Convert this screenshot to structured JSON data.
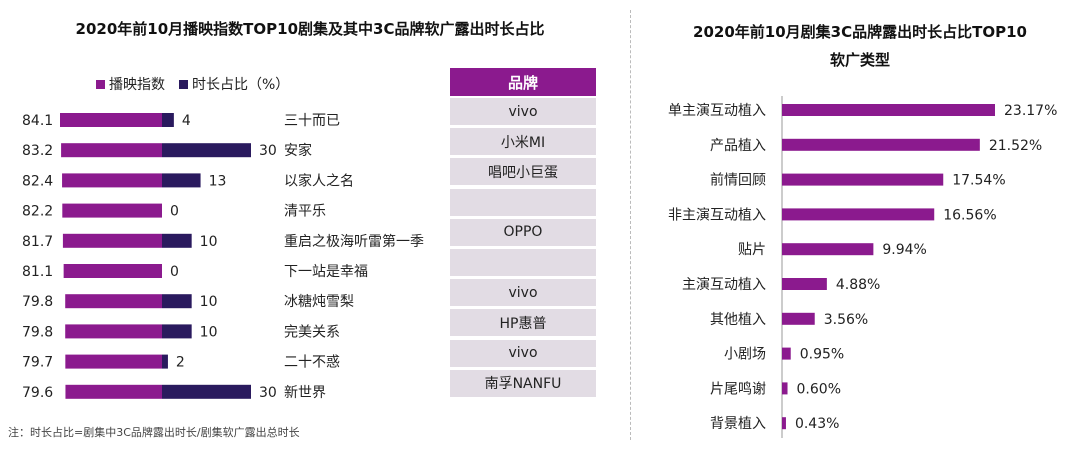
{
  "left_title": "2020年前10月播映指数TOP10剧集及其中3C品牌软广露出时长占比",
  "right_title_line1": "2020年前10月剧集3C品牌露出时长占比TOP10",
  "right_title_line2": "软广类型",
  "legend": [
    {
      "label": "播映指数",
      "color": "#8b1a8e"
    },
    {
      "label": "时长占比（%）",
      "color": "#2a1a5e"
    }
  ],
  "brand_header": "品牌",
  "note": "注：时长占比=剧集中3C品牌露出时长/剧集软广露出总时长",
  "colors": {
    "purple": "#8b1a8e",
    "navy": "#2a1a5e",
    "cell": "#e2dce4"
  },
  "chart_data": [
    {
      "type": "bar",
      "categories": [
        "三十而已",
        "安家",
        "以家人之名",
        "清平乐",
        "重启之极海听雷第一季",
        "下一站是幸福",
        "冰糖炖雪梨",
        "完美关系",
        "二十不惑",
        "新世界"
      ],
      "series": [
        {
          "name": "播映指数",
          "values": [
            84.1,
            83.2,
            82.4,
            82.2,
            81.7,
            81.1,
            79.8,
            79.8,
            79.7,
            79.6
          ]
        },
        {
          "name": "时长占比（%）",
          "values": [
            4,
            30,
            13,
            0,
            10,
            0,
            10,
            10,
            2,
            30
          ]
        }
      ],
      "brands": [
        "vivo",
        "小米MI",
        "唱吧小巨蛋",
        "",
        "OPPO",
        "",
        "vivo",
        "HP惠普",
        "vivo",
        "南孚NANFU"
      ]
    },
    {
      "type": "bar",
      "categories": [
        "单主演互动植入",
        "产品植入",
        "前情回顾",
        "非主演互动植入",
        "贴片",
        "主演互动植入",
        "其他植入",
        "小剧场",
        "片尾鸣谢",
        "背景植入"
      ],
      "values": [
        23.17,
        21.52,
        17.54,
        16.56,
        9.94,
        4.88,
        3.56,
        0.95,
        0.6,
        0.43
      ],
      "value_labels": [
        "23.17%",
        "21.52%",
        "17.54%",
        "16.56%",
        "9.94%",
        "4.88%",
        "3.56%",
        "0.95%",
        "0.60%",
        "0.43%"
      ]
    }
  ]
}
